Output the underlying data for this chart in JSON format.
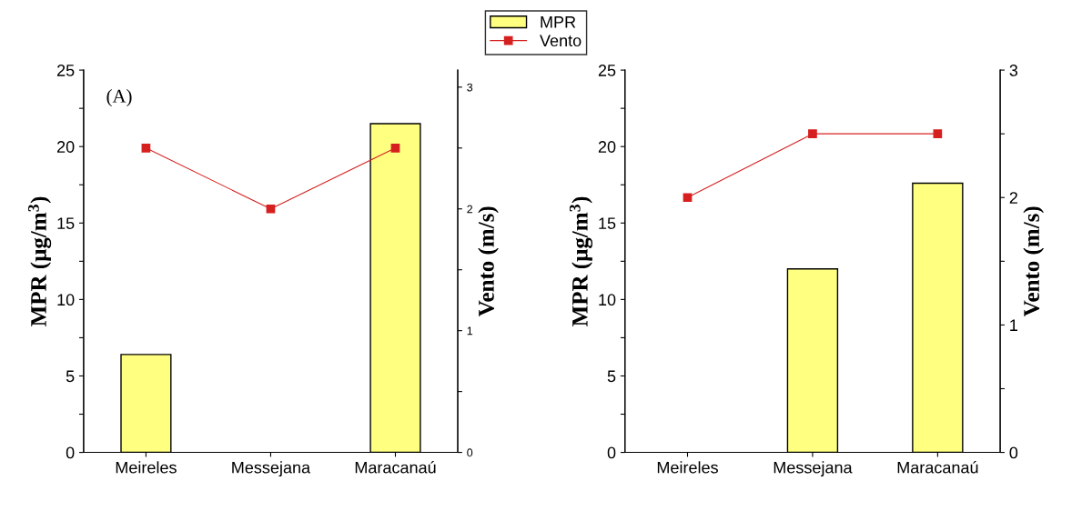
{
  "chart_data": [
    {
      "type": "bar",
      "ylabel": "MPR (μg/m$^{3}$)",
      "y2label": "Vento (m/s)",
      "annotations": [
        "(A)"
      ],
      "categories": [
        "Meireles",
        "Messejana",
        "Maracanaú"
      ],
      "series": [
        {
          "name": "MPR",
          "color": "#ffff80",
          "values": [
            6.4,
            null,
            21.5
          ]
        },
        {
          "name": "Vento",
          "type": "line",
          "axis": "y2",
          "color": "#d62020",
          "marker": "square",
          "values": [
            2.5,
            2.0,
            2.5
          ]
        }
      ],
      "ylim": [
        0,
        25
      ],
      "yticks": [
        0,
        {
          "value": 2.5,
          "label": null
        },
        5,
        {
          "value": 7.5,
          "label": null
        },
        10,
        {
          "value": 12.5,
          "label": null
        },
        15,
        {
          "value": 17.5,
          "label": null
        },
        20,
        {
          "value": 22.5,
          "label": null
        },
        25
      ],
      "y2lim": [
        0,
        3.14
      ],
      "y2ticks": [
        0,
        {
          "value": 0.5,
          "label": null
        },
        1,
        {
          "value": 1.5,
          "label": null
        },
        2,
        {
          "value": 2.5,
          "label": null
        },
        3
      ],
      "legend": "top"
    },
    {
      "type": "bar",
      "ylabel": "MPR (μg/m$^{3}$)",
      "y2label": "Vento (m/s)",
      "categories": [
        "Meireles",
        "Messejana",
        "Maracanaú"
      ],
      "series": [
        {
          "color": "#ffff80",
          "values": [
            null,
            12.0,
            17.6
          ]
        },
        {
          "type": "line",
          "axis": "y2",
          "color": "#d62020",
          "marker": "square",
          "values": [
            2.0,
            2.5,
            2.5
          ]
        }
      ],
      "ylim": [
        0,
        25
      ],
      "yticks": [
        0,
        {
          "value": 2.5,
          "label": null
        },
        5,
        {
          "value": 7.5,
          "label": null
        },
        10,
        {
          "value": 12.5,
          "label": null
        },
        15,
        {
          "value": 17.5,
          "label": null
        },
        20,
        {
          "value": 22.5,
          "label": null
        },
        25
      ],
      "y2lim": [
        0,
        3
      ],
      "y2ticks": [
        0,
        {
          "value": 0.5,
          "label": null
        },
        1,
        {
          "value": 1.5,
          "label": null
        },
        2,
        {
          "value": 2.5,
          "label": null
        },
        3
      ]
    }
  ]
}
